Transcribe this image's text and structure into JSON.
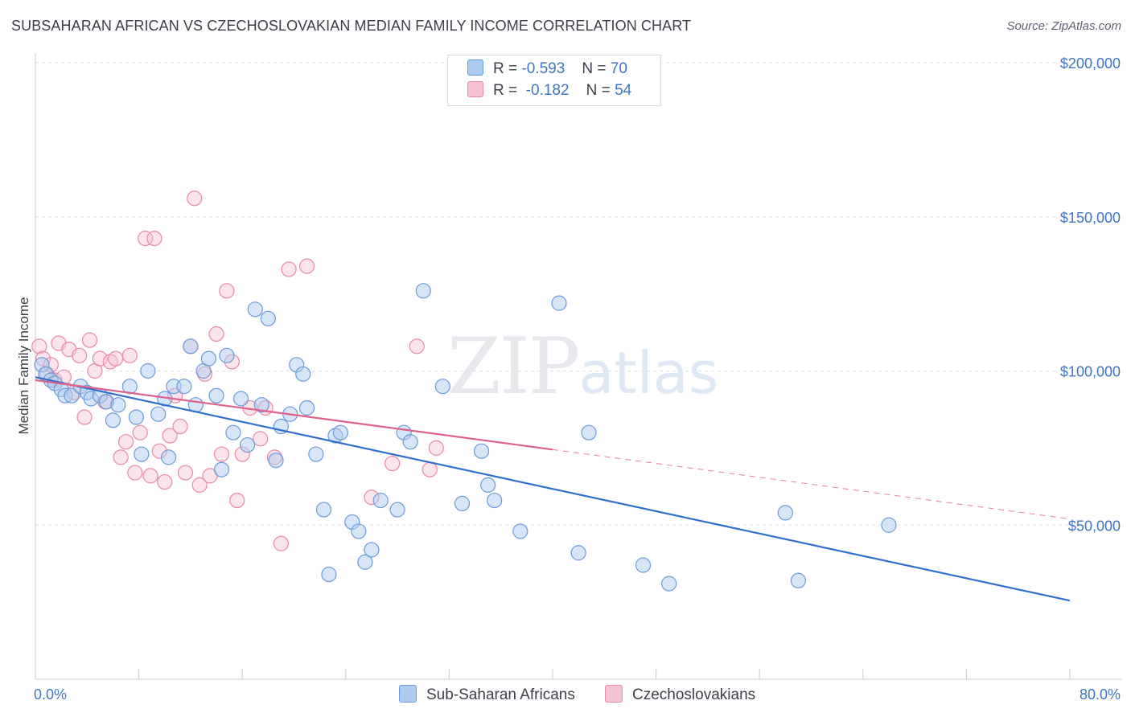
{
  "header": {
    "title": "SUBSAHARAN AFRICAN VS CZECHOSLOVAKIAN MEDIAN FAMILY INCOME CORRELATION CHART",
    "source": "Source: ZipAtlas.com"
  },
  "watermark": {
    "zip": "ZIP",
    "atlas": "atlas"
  },
  "legend": {
    "rows": [
      {
        "r_label": "R =",
        "r_value": "-0.593",
        "n_label": "N =",
        "n_value": "70"
      },
      {
        "r_label": "R =",
        "r_value": "-0.182",
        "n_label": "N =",
        "n_value": "54"
      }
    ]
  },
  "bottom_legend": {
    "series1": "Sub-Saharan Africans",
    "series2": "Czechoslovakians"
  },
  "colors": {
    "blue_fill": "#aecbf0",
    "blue_stroke": "#6b9ad8",
    "blue_line": "#2f6fcf",
    "pink_fill": "#f6c3d3",
    "pink_stroke": "#e889a8",
    "pink_line": "#e0608a",
    "grid": "#dde1e8",
    "axis_text": "#3d76c7"
  },
  "chart_data": {
    "type": "scatter",
    "title": "SUBSAHARAN AFRICAN VS CZECHOSLOVAKIAN MEDIAN FAMILY INCOME CORRELATION CHART",
    "xlabel": "",
    "ylabel": "Median Family Income",
    "xlim": [
      0,
      80
    ],
    "ylim": [
      0,
      205000
    ],
    "x_tick_labels": [
      "0.0%",
      "80.0%"
    ],
    "y_ticks": [
      50000,
      100000,
      150000,
      200000
    ],
    "y_tick_labels": [
      "$50,000",
      "$100,000",
      "$150,000",
      "$200,000"
    ],
    "series": [
      {
        "name": "Sub-Saharan Africans",
        "color": "blue",
        "R": -0.593,
        "N": 70,
        "trend": {
          "x": [
            0,
            80
          ],
          "y": [
            98000,
            25500
          ],
          "dashed_from": null
        },
        "points": [
          [
            0.5,
            102000
          ],
          [
            0.8,
            99000
          ],
          [
            1.2,
            97000
          ],
          [
            1.5,
            96000
          ],
          [
            2.0,
            94000
          ],
          [
            2.3,
            92000
          ],
          [
            2.8,
            92000
          ],
          [
            3.5,
            95000
          ],
          [
            4.0,
            93000
          ],
          [
            4.3,
            91000
          ],
          [
            5.0,
            92000
          ],
          [
            5.5,
            90000
          ],
          [
            6.0,
            84000
          ],
          [
            6.4,
            89000
          ],
          [
            7.3,
            95000
          ],
          [
            7.8,
            85000
          ],
          [
            8.2,
            73000
          ],
          [
            8.7,
            100000
          ],
          [
            9.5,
            86000
          ],
          [
            10.0,
            91000
          ],
          [
            10.3,
            72000
          ],
          [
            10.7,
            95000
          ],
          [
            11.5,
            95000
          ],
          [
            12.0,
            108000
          ],
          [
            12.4,
            89000
          ],
          [
            13.0,
            100000
          ],
          [
            13.4,
            104000
          ],
          [
            14.0,
            92000
          ],
          [
            14.4,
            68000
          ],
          [
            14.8,
            105000
          ],
          [
            15.3,
            80000
          ],
          [
            15.9,
            91000
          ],
          [
            16.4,
            76000
          ],
          [
            17.0,
            120000
          ],
          [
            17.5,
            89000
          ],
          [
            18.0,
            117000
          ],
          [
            18.6,
            71000
          ],
          [
            19.0,
            82000
          ],
          [
            19.7,
            86000
          ],
          [
            20.2,
            102000
          ],
          [
            20.7,
            99000
          ],
          [
            21.0,
            88000
          ],
          [
            21.7,
            73000
          ],
          [
            22.3,
            55000
          ],
          [
            22.7,
            34000
          ],
          [
            23.2,
            79000
          ],
          [
            23.6,
            80000
          ],
          [
            24.5,
            51000
          ],
          [
            25.0,
            48000
          ],
          [
            25.5,
            38000
          ],
          [
            26.0,
            42000
          ],
          [
            26.7,
            58000
          ],
          [
            28.0,
            55000
          ],
          [
            28.5,
            80000
          ],
          [
            29.0,
            77000
          ],
          [
            30.0,
            126000
          ],
          [
            31.5,
            95000
          ],
          [
            33.0,
            57000
          ],
          [
            34.5,
            74000
          ],
          [
            35.0,
            63000
          ],
          [
            35.5,
            58000
          ],
          [
            37.5,
            48000
          ],
          [
            40.5,
            122000
          ],
          [
            42.0,
            41000
          ],
          [
            42.8,
            80000
          ],
          [
            47.0,
            37000
          ],
          [
            49.0,
            31000
          ],
          [
            58.0,
            54000
          ],
          [
            59.0,
            32000
          ],
          [
            66.0,
            50000
          ]
        ]
      },
      {
        "name": "Czechoslovakians",
        "color": "pink",
        "R": -0.182,
        "N": 54,
        "trend": {
          "x": [
            0,
            80
          ],
          "y": [
            97000,
            52000
          ],
          "dashed_from": 40
        },
        "points": [
          [
            0.3,
            108000
          ],
          [
            0.6,
            104000
          ],
          [
            0.9,
            99000
          ],
          [
            1.2,
            102000
          ],
          [
            1.5,
            97000
          ],
          [
            1.8,
            109000
          ],
          [
            2.2,
            98000
          ],
          [
            2.6,
            107000
          ],
          [
            3.0,
            93000
          ],
          [
            3.4,
            105000
          ],
          [
            3.8,
            85000
          ],
          [
            4.2,
            110000
          ],
          [
            4.6,
            100000
          ],
          [
            5.0,
            104000
          ],
          [
            5.4,
            90000
          ],
          [
            5.8,
            103000
          ],
          [
            6.2,
            104000
          ],
          [
            6.6,
            72000
          ],
          [
            7.0,
            77000
          ],
          [
            7.3,
            105000
          ],
          [
            7.7,
            67000
          ],
          [
            8.1,
            80000
          ],
          [
            8.5,
            143000
          ],
          [
            8.9,
            66000
          ],
          [
            9.2,
            143000
          ],
          [
            9.6,
            74000
          ],
          [
            10.0,
            64000
          ],
          [
            10.4,
            79000
          ],
          [
            10.8,
            92000
          ],
          [
            11.2,
            82000
          ],
          [
            11.6,
            67000
          ],
          [
            12.0,
            108000
          ],
          [
            12.3,
            156000
          ],
          [
            12.7,
            63000
          ],
          [
            13.1,
            99000
          ],
          [
            13.5,
            66000
          ],
          [
            14.0,
            112000
          ],
          [
            14.4,
            73000
          ],
          [
            14.8,
            126000
          ],
          [
            15.2,
            103000
          ],
          [
            15.6,
            58000
          ],
          [
            16.0,
            73000
          ],
          [
            16.6,
            88000
          ],
          [
            17.4,
            78000
          ],
          [
            17.8,
            88000
          ],
          [
            18.5,
            72000
          ],
          [
            19.0,
            44000
          ],
          [
            19.6,
            133000
          ],
          [
            21.0,
            134000
          ],
          [
            26.0,
            59000
          ],
          [
            27.6,
            70000
          ],
          [
            29.5,
            108000
          ],
          [
            30.5,
            68000
          ],
          [
            31.0,
            75000
          ]
        ]
      }
    ]
  }
}
